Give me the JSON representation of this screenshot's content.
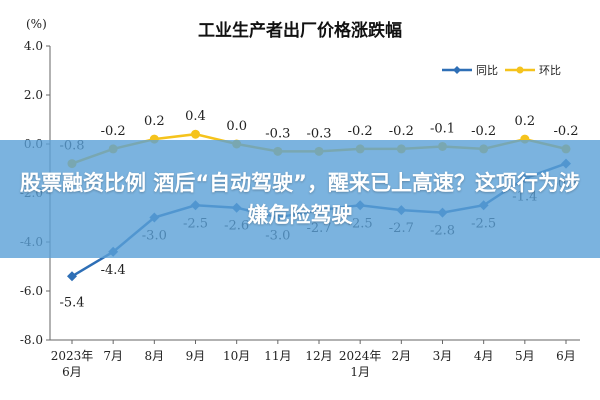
{
  "chart_data": {
    "type": "line",
    "title": "工业生产者出厂价格涨跌幅",
    "unit_label": "(%)",
    "categories": [
      [
        "2023年",
        "6月"
      ],
      [
        "7月"
      ],
      [
        "8月"
      ],
      [
        "9月"
      ],
      [
        "10月"
      ],
      [
        "11月"
      ],
      [
        "12月"
      ],
      [
        "2024年",
        "1月"
      ],
      [
        "2月"
      ],
      [
        "3月"
      ],
      [
        "4月"
      ],
      [
        "5月"
      ],
      [
        "6月"
      ]
    ],
    "ylim": [
      -8.0,
      4.0
    ],
    "yticks": [
      "4.0",
      "2.0",
      "0.0",
      "-2.0",
      "-4.0",
      "-6.0",
      "-8.0"
    ],
    "ytick_values": [
      4,
      2,
      0,
      -2,
      -4,
      -6,
      -8
    ],
    "legend_position": "top-right",
    "grid": false,
    "series": [
      {
        "name": "同比",
        "color": "#2e6fb6",
        "values": [
          -5.4,
          -4.4,
          -3.0,
          -2.5,
          -2.6,
          -3.0,
          -2.7,
          -2.5,
          -2.7,
          -2.8,
          -2.5,
          -1.4,
          -0.8
        ],
        "labels": [
          "-5.4",
          "-4.4",
          "-3.0",
          "-2.5",
          "-2.6",
          "-3.0",
          "-2.7",
          "-2.5",
          "-2.7",
          "-2.8",
          "-2.5",
          "-1.4",
          "-0.8"
        ]
      },
      {
        "name": "环比",
        "color": "#f5c31c",
        "values": [
          -0.8,
          -0.2,
          0.2,
          0.4,
          0.0,
          -0.3,
          -0.3,
          -0.2,
          -0.2,
          -0.1,
          -0.2,
          0.2,
          -0.2
        ],
        "labels": [
          "-0.8",
          "-0.2",
          "0.2",
          "0.4",
          "0.0",
          "-0.3",
          "-0.3",
          "-0.2",
          "-0.2",
          "-0.1",
          "-0.2",
          "0.2",
          "-0.2"
        ]
      }
    ]
  },
  "overlay": {
    "text": "股票融资比例 酒后“自动驾驶”，醒来已上高速？这项行为涉嫌危险驾驶",
    "color": "#5aa0d7"
  }
}
